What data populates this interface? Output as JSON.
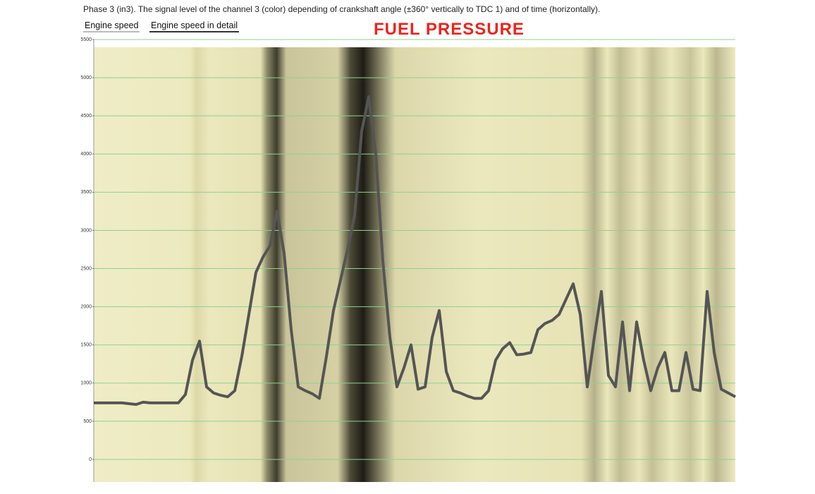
{
  "header": "Phase 3 (in3). The signal level of the channel 3 (color) depending of crankshaft angle (±360° vertically to TDC 1) and of time (horizontally).",
  "tabs": [
    "Engine speed",
    "Engine speed in detail"
  ],
  "chart_data": {
    "type": "line",
    "title": "FUEL PRESSURE",
    "ylim": [
      0,
      5500
    ],
    "yticks": [
      0,
      500,
      1000,
      1500,
      2000,
      2500,
      3000,
      3500,
      4000,
      4500,
      5000,
      5500
    ],
    "grid": true,
    "series": [
      {
        "name": "Engine speed",
        "color": "#555555",
        "values": [
          740,
          740,
          740,
          740,
          740,
          730,
          720,
          750,
          740,
          740,
          740,
          740,
          740,
          850,
          1300,
          1550,
          950,
          870,
          840,
          820,
          900,
          1350,
          1900,
          2450,
          2650,
          2800,
          3250,
          2700,
          1700,
          950,
          900,
          860,
          800,
          1350,
          1950,
          2350,
          2750,
          3200,
          4300,
          4750,
          4000,
          2600,
          1600,
          950,
          1200,
          1500,
          920,
          950,
          1600,
          1950,
          1150,
          900,
          870,
          830,
          800,
          800,
          900,
          1300,
          1450,
          1530,
          1370,
          1380,
          1400,
          1700,
          1780,
          1820,
          1900,
          2100,
          2300,
          1900,
          950,
          1600,
          2200,
          1100,
          950,
          1800,
          900,
          1800,
          1300,
          900,
          1200,
          1400,
          900,
          900,
          1400,
          920,
          900,
          2200,
          1400,
          920,
          870,
          820
        ]
      }
    ]
  }
}
